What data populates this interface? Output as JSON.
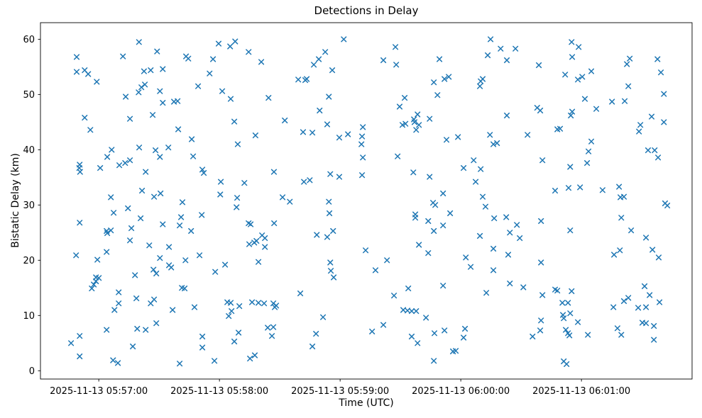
{
  "chart_data": {
    "type": "scatter",
    "title": "Detections in Delay",
    "xlabel": "Time (UTC)",
    "ylabel": "Bistatic Delay (km)",
    "marker": "x",
    "marker_color": "#1f77b4",
    "grid": false,
    "legend": null,
    "x_unit": "seconds after 2025-11-13 05:56:00 UTC",
    "xlim": [
      31,
      355
    ],
    "ylim": [
      -1.5,
      63
    ],
    "x_ticks": [
      {
        "value": 60,
        "label": "2025-11-13 05:57:00"
      },
      {
        "value": 120,
        "label": "2025-11-13 05:58:00"
      },
      {
        "value": 180,
        "label": "2025-11-13 05:59:00"
      },
      {
        "value": 240,
        "label": "2025-11-13 06:00:00"
      },
      {
        "value": 300,
        "label": "2025-11-13 06:01:00"
      }
    ],
    "y_ticks": [
      0,
      10,
      20,
      30,
      40,
      50,
      60
    ],
    "points": [
      [
        80,
        59.5
      ],
      [
        49,
        56.8
      ],
      [
        72,
        56.9
      ],
      [
        89,
        57.8
      ],
      [
        103.4,
        56.9
      ],
      [
        104.5,
        56.5
      ],
      [
        49,
        54.1
      ],
      [
        53,
        54.4
      ],
      [
        54.7,
        53.7
      ],
      [
        59,
        52.3
      ],
      [
        82.5,
        54.2
      ],
      [
        85.8,
        54.4
      ],
      [
        91.8,
        54.6
      ],
      [
        81.2,
        51.3
      ],
      [
        82.9,
        51.8
      ],
      [
        79.8,
        50.4
      ],
      [
        73.4,
        49.6
      ],
      [
        90.4,
        50.6
      ],
      [
        91.8,
        48.5
      ],
      [
        97.4,
        48.7
      ],
      [
        99.2,
        48.8
      ],
      [
        109.4,
        51.5
      ],
      [
        53,
        45.8
      ],
      [
        75.5,
        45.6
      ],
      [
        86.8,
        46.3
      ],
      [
        55.8,
        43.6
      ],
      [
        99.5,
        43.7
      ],
      [
        106.2,
        41.9
      ],
      [
        66.4,
        40
      ],
      [
        64.2,
        38.7
      ],
      [
        80.1,
        40.4
      ],
      [
        88.2,
        39.9
      ],
      [
        94.6,
        40.4
      ],
      [
        90.4,
        38.7
      ],
      [
        106.9,
        38.8
      ],
      [
        50.5,
        37.3
      ],
      [
        50.3,
        36.7
      ],
      [
        50.7,
        36
      ],
      [
        60.7,
        36.7
      ],
      [
        70.2,
        37.2
      ],
      [
        73.1,
        37.6
      ],
      [
        75.5,
        38.1
      ],
      [
        83.3,
        36
      ],
      [
        111.5,
        36.4
      ],
      [
        112.2,
        35.8
      ],
      [
        81.5,
        32.6
      ],
      [
        87.5,
        31.5
      ],
      [
        90.7,
        32.1
      ],
      [
        66,
        31.4
      ],
      [
        119.6,
        59.2
      ],
      [
        125.3,
        58.7
      ],
      [
        127.8,
        59.6
      ],
      [
        134.5,
        57.7
      ],
      [
        116.8,
        56.4
      ],
      [
        140.8,
        55.9
      ],
      [
        115.1,
        53.8
      ],
      [
        181.8,
        60
      ],
      [
        172.6,
        57.7
      ],
      [
        169.4,
        56.4
      ],
      [
        166.9,
        55.4
      ],
      [
        176.1,
        54.4
      ],
      [
        159.2,
        52.7
      ],
      [
        162.7,
        52.6
      ],
      [
        163.4,
        52.8
      ],
      [
        121.4,
        50.6
      ],
      [
        125.6,
        49.2
      ],
      [
        144.4,
        49.4
      ],
      [
        174.4,
        49.6
      ],
      [
        169.8,
        47.1
      ],
      [
        127.4,
        45.1
      ],
      [
        152.5,
        45.3
      ],
      [
        173.6,
        44.6
      ],
      [
        161.6,
        43.2
      ],
      [
        166.2,
        43.1
      ],
      [
        179.6,
        42.2
      ],
      [
        183.9,
        42.8
      ],
      [
        191.3,
        44.1
      ],
      [
        190.9,
        42.4
      ],
      [
        190.6,
        41
      ],
      [
        191.3,
        38.6
      ],
      [
        190.9,
        35.4
      ],
      [
        137.9,
        42.6
      ],
      [
        129.1,
        41
      ],
      [
        147.1,
        36
      ],
      [
        120.7,
        34.2
      ],
      [
        132.4,
        34
      ],
      [
        162,
        34.2
      ],
      [
        164.9,
        34.5
      ],
      [
        175.1,
        35.6
      ],
      [
        179.6,
        35.1
      ],
      [
        120.4,
        31.9
      ],
      [
        128.8,
        31.3
      ],
      [
        151.4,
        31.4
      ],
      [
        254.8,
        60
      ],
      [
        207.5,
        58.6
      ],
      [
        259.8,
        58.3
      ],
      [
        267.2,
        58.3
      ],
      [
        201.5,
        56.2
      ],
      [
        207.9,
        55.4
      ],
      [
        229.4,
        56.4
      ],
      [
        253.4,
        57.1
      ],
      [
        262.9,
        56.2
      ],
      [
        231.9,
        52.8
      ],
      [
        234,
        53.2
      ],
      [
        226.6,
        52.2
      ],
      [
        249.9,
        52.4
      ],
      [
        250.9,
        52.8
      ],
      [
        249.5,
        51.5
      ],
      [
        228.4,
        49.9
      ],
      [
        212.1,
        49.4
      ],
      [
        209.6,
        47.8
      ],
      [
        218.5,
        46.4
      ],
      [
        216.7,
        45.5
      ],
      [
        224.5,
        45.6
      ],
      [
        262.9,
        46.2
      ],
      [
        211,
        44.5
      ],
      [
        212.5,
        44.7
      ],
      [
        217,
        45
      ],
      [
        219.2,
        44.5
      ],
      [
        217.8,
        43.6
      ],
      [
        232.9,
        41.8
      ],
      [
        238.6,
        42.3
      ],
      [
        254.5,
        42.7
      ],
      [
        256.2,
        41
      ],
      [
        258,
        41.2
      ],
      [
        273.2,
        42.7
      ],
      [
        208.6,
        38.8
      ],
      [
        241.4,
        36.7
      ],
      [
        246.4,
        38.1
      ],
      [
        249.9,
        36.5
      ],
      [
        216.4,
        35.9
      ],
      [
        224.5,
        35.1
      ],
      [
        247.4,
        34.2
      ],
      [
        231.2,
        32.1
      ],
      [
        250.9,
        31.5
      ],
      [
        295.1,
        59.5
      ],
      [
        298.6,
        58.6
      ],
      [
        295.4,
        56.8
      ],
      [
        278.8,
        55.3
      ],
      [
        324,
        56.5
      ],
      [
        322.6,
        55.5
      ],
      [
        337.8,
        56.4
      ],
      [
        291.9,
        53.6
      ],
      [
        304.9,
        54.2
      ],
      [
        298.2,
        52.7
      ],
      [
        300.4,
        53.2
      ],
      [
        339.5,
        54
      ],
      [
        323.3,
        51.5
      ],
      [
        341,
        50.1
      ],
      [
        301.7,
        49.2
      ],
      [
        315.2,
        48.7
      ],
      [
        321.5,
        48.8
      ],
      [
        307.4,
        47.4
      ],
      [
        278,
        47.6
      ],
      [
        279.5,
        47.1
      ],
      [
        295.4,
        46.9
      ],
      [
        294.7,
        46.2
      ],
      [
        334.9,
        46
      ],
      [
        341,
        45
      ],
      [
        329.3,
        44.5
      ],
      [
        328.6,
        43.3
      ],
      [
        288,
        43.7
      ],
      [
        289.4,
        43.8
      ],
      [
        304.9,
        41.5
      ],
      [
        303.5,
        39.7
      ],
      [
        333.1,
        39.9
      ],
      [
        336.4,
        39.9
      ],
      [
        338.1,
        38.6
      ],
      [
        280.6,
        38.1
      ],
      [
        302.8,
        37.6
      ],
      [
        294.4,
        36.9
      ],
      [
        293.6,
        33.1
      ],
      [
        299.3,
        33.2
      ],
      [
        286.9,
        32.6
      ],
      [
        310.5,
        32.7
      ],
      [
        318.7,
        33.3
      ],
      [
        319.4,
        31.4
      ],
      [
        321.1,
        31.5
      ],
      [
        74.5,
        29.4
      ],
      [
        67.4,
        28.6
      ],
      [
        80.8,
        27.6
      ],
      [
        50.5,
        26.8
      ],
      [
        101.6,
        30.5
      ],
      [
        63.9,
        25.3
      ],
      [
        64.2,
        24.9
      ],
      [
        66,
        25.4
      ],
      [
        76.2,
        25.8
      ],
      [
        91.8,
        26.5
      ],
      [
        100.9,
        27.8
      ],
      [
        100.2,
        26.3
      ],
      [
        105.9,
        25.3
      ],
      [
        111.2,
        28.2
      ],
      [
        75.5,
        23.6
      ],
      [
        85.1,
        22.7
      ],
      [
        94.9,
        22.4
      ],
      [
        48.7,
        20.9
      ],
      [
        59.3,
        20.1
      ],
      [
        63.9,
        21.5
      ],
      [
        90.4,
        20.4
      ],
      [
        103.1,
        20
      ],
      [
        110.1,
        20.9
      ],
      [
        87.2,
        18.3
      ],
      [
        88.6,
        17.6
      ],
      [
        94.9,
        19.1
      ],
      [
        96,
        18.7
      ],
      [
        78,
        17.3
      ],
      [
        58.6,
        16.9
      ],
      [
        60,
        16.8
      ],
      [
        58.6,
        16.2
      ],
      [
        57.5,
        15.6
      ],
      [
        56.5,
        14.9
      ],
      [
        69.9,
        14.2
      ],
      [
        101.3,
        15
      ],
      [
        102.7,
        14.9
      ],
      [
        78.7,
        13.1
      ],
      [
        85.8,
        12.2
      ],
      [
        87.5,
        12.9
      ],
      [
        69.9,
        12.2
      ],
      [
        67.8,
        11
      ],
      [
        96.7,
        11
      ],
      [
        107.6,
        11.5
      ],
      [
        88.6,
        8.6
      ],
      [
        79.1,
        7.6
      ],
      [
        83.3,
        7.4
      ],
      [
        63.9,
        7.4
      ],
      [
        50.5,
        6.3
      ],
      [
        46.2,
        5
      ],
      [
        76.9,
        4.4
      ],
      [
        50.5,
        2.6
      ],
      [
        67.1,
        1.9
      ],
      [
        69.5,
        1.4
      ],
      [
        100.2,
        1.3
      ],
      [
        111.5,
        6.2
      ],
      [
        111.5,
        4.2
      ],
      [
        128.5,
        29.6
      ],
      [
        174.7,
        28.5
      ],
      [
        134.5,
        26.7
      ],
      [
        135.5,
        26.5
      ],
      [
        147.2,
        26.7
      ],
      [
        141.2,
        24.5
      ],
      [
        142.6,
        24
      ],
      [
        138.4,
        23.5
      ],
      [
        134.8,
        22.9
      ],
      [
        137.3,
        23.2
      ],
      [
        142.6,
        22.4
      ],
      [
        168.4,
        24.6
      ],
      [
        173.6,
        24.2
      ],
      [
        176.5,
        25.3
      ],
      [
        139.4,
        19.7
      ],
      [
        122.8,
        19.2
      ],
      [
        117.9,
        17.9
      ],
      [
        175.1,
        19.6
      ],
      [
        175.4,
        18.1
      ],
      [
        176.8,
        16.9
      ],
      [
        160.2,
        14
      ],
      [
        123.9,
        12.4
      ],
      [
        125.6,
        12.3
      ],
      [
        129.9,
        11.7
      ],
      [
        136.2,
        12.4
      ],
      [
        139.4,
        12.3
      ],
      [
        142.2,
        12.2
      ],
      [
        146.8,
        12.2
      ],
      [
        148.2,
        11.8
      ],
      [
        147.5,
        11.5
      ],
      [
        126,
        10.8
      ],
      [
        124.6,
        9.9
      ],
      [
        171.5,
        9.7
      ],
      [
        144,
        7.8
      ],
      [
        146.8,
        7.9
      ],
      [
        146.1,
        6.3
      ],
      [
        129.5,
        6.9
      ],
      [
        127.4,
        5.3
      ],
      [
        168,
        6.7
      ],
      [
        166.2,
        4.4
      ],
      [
        117.5,
        1.8
      ],
      [
        135.2,
        2.2
      ],
      [
        137.6,
        2.8
      ],
      [
        226.2,
        30.4
      ],
      [
        227.3,
        30
      ],
      [
        234.7,
        28.5
      ],
      [
        252.3,
        29.7
      ],
      [
        217.4,
        28.3
      ],
      [
        217.4,
        27.7
      ],
      [
        223.8,
        27.1
      ],
      [
        231.2,
        26.3
      ],
      [
        226.6,
        25.3
      ],
      [
        256.6,
        27.6
      ],
      [
        262.6,
        27.8
      ],
      [
        267.9,
        26.4
      ],
      [
        264.4,
        25
      ],
      [
        249.5,
        24.4
      ],
      [
        269.3,
        24
      ],
      [
        219.2,
        22.8
      ],
      [
        223.8,
        21.3
      ],
      [
        192.7,
        21.8
      ],
      [
        203.3,
        20
      ],
      [
        197.6,
        18.2
      ],
      [
        242.5,
        20.5
      ],
      [
        244.9,
        18.8
      ],
      [
        256.2,
        22.1
      ],
      [
        263.6,
        21
      ],
      [
        256.2,
        18.2
      ],
      [
        231.2,
        15.4
      ],
      [
        213.9,
        14.9
      ],
      [
        206.8,
        13.6
      ],
      [
        264.4,
        15.8
      ],
      [
        271.1,
        15.1
      ],
      [
        252.7,
        14.1
      ],
      [
        211.4,
        11
      ],
      [
        213.5,
        10.9
      ],
      [
        215.6,
        10.8
      ],
      [
        217.8,
        10.8
      ],
      [
        222.7,
        9.6
      ],
      [
        201.5,
        8.3
      ],
      [
        195.9,
        7.1
      ],
      [
        226.9,
        6.8
      ],
      [
        231.9,
        7.3
      ],
      [
        242.1,
        7.6
      ],
      [
        241.4,
        6
      ],
      [
        215.6,
        6.2
      ],
      [
        218.5,
        5
      ],
      [
        236.1,
        3.5
      ],
      [
        237.5,
        3.6
      ],
      [
        226.6,
        1.8
      ],
      [
        341.6,
        30.3
      ],
      [
        342.7,
        29.9
      ],
      [
        279.9,
        27.1
      ],
      [
        294.4,
        25.4
      ],
      [
        319.8,
        27.7
      ],
      [
        324.7,
        25.4
      ],
      [
        332.1,
        24.1
      ],
      [
        316.2,
        21
      ],
      [
        319.1,
        21.8
      ],
      [
        335.3,
        21.9
      ],
      [
        338.4,
        20.5
      ],
      [
        279.9,
        19.6
      ],
      [
        331.4,
        15.3
      ],
      [
        333.9,
        13.7
      ],
      [
        286.9,
        14.7
      ],
      [
        288,
        14.5
      ],
      [
        295.1,
        14.4
      ],
      [
        280.6,
        13.7
      ],
      [
        290.5,
        12.3
      ],
      [
        293.3,
        12.3
      ],
      [
        323.3,
        13.2
      ],
      [
        321.1,
        12.6
      ],
      [
        315.9,
        11.5
      ],
      [
        328.2,
        11.4
      ],
      [
        332.1,
        11.5
      ],
      [
        338.8,
        12.4
      ],
      [
        290.8,
        10.1
      ],
      [
        291.2,
        9.5
      ],
      [
        294.4,
        10.4
      ],
      [
        279.9,
        9.1
      ],
      [
        298.2,
        8.8
      ],
      [
        330.3,
        8.7
      ],
      [
        332.1,
        8.6
      ],
      [
        336,
        8.1
      ],
      [
        279.5,
        7.3
      ],
      [
        275.7,
        6.2
      ],
      [
        292.2,
        7.4
      ],
      [
        293.3,
        6.8
      ],
      [
        294,
        6.4
      ],
      [
        303.2,
        6.5
      ],
      [
        317.9,
        7.7
      ],
      [
        319.8,
        6.5
      ],
      [
        336,
        5.6
      ],
      [
        291.2,
        1.7
      ],
      [
        292.6,
        1.2
      ],
      [
        174.4,
        30.6
      ],
      [
        155,
        30.6
      ]
    ]
  }
}
